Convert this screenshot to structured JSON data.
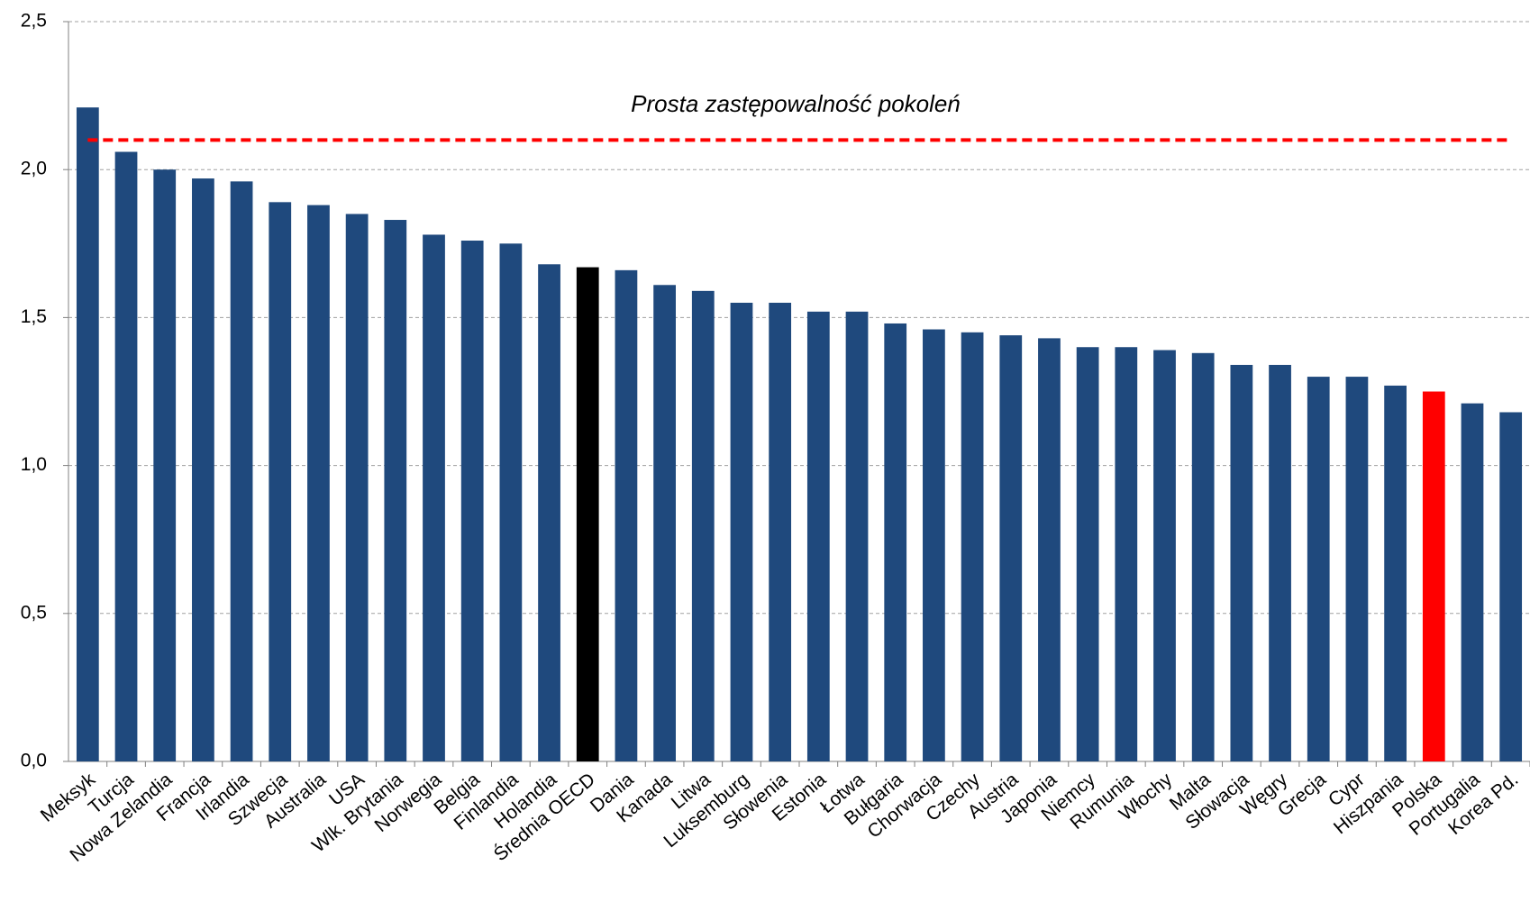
{
  "chart_data": {
    "type": "bar",
    "categories": [
      "Meksyk",
      "Turcja",
      "Nowa Zelandia",
      "Francja",
      "Irlandia",
      "Szwecja",
      "Australia",
      "USA",
      "Wlk. Brytania",
      "Norwegia",
      "Belgia",
      "Finlandia",
      "Holandia",
      "Średnia OECD",
      "Dania",
      "Kanada",
      "Litwa",
      "Luksemburg",
      "Słowenia",
      "Estonia",
      "Łotwa",
      "Bułgaria",
      "Chorwacja",
      "Czechy",
      "Austria",
      "Japonia",
      "Niemcy",
      "Rumunia",
      "Włochy",
      "Malta",
      "Słowacja",
      "Węgry",
      "Grecja",
      "Cypr",
      "Hiszpania",
      "Polska",
      "Portugalia",
      "Korea Pd."
    ],
    "values": [
      2.21,
      2.06,
      2.0,
      1.97,
      1.96,
      1.89,
      1.88,
      1.85,
      1.83,
      1.78,
      1.76,
      1.75,
      1.68,
      1.67,
      1.66,
      1.61,
      1.59,
      1.55,
      1.55,
      1.52,
      1.52,
      1.48,
      1.46,
      1.45,
      1.44,
      1.43,
      1.4,
      1.4,
      1.39,
      1.38,
      1.34,
      1.34,
      1.3,
      1.3,
      1.27,
      1.25,
      1.21,
      1.18
    ],
    "colors": [
      "#1f497d",
      "#1f497d",
      "#1f497d",
      "#1f497d",
      "#1f497d",
      "#1f497d",
      "#1f497d",
      "#1f497d",
      "#1f497d",
      "#1f497d",
      "#1f497d",
      "#1f497d",
      "#1f497d",
      "#000000",
      "#1f497d",
      "#1f497d",
      "#1f497d",
      "#1f497d",
      "#1f497d",
      "#1f497d",
      "#1f497d",
      "#1f497d",
      "#1f497d",
      "#1f497d",
      "#1f497d",
      "#1f497d",
      "#1f497d",
      "#1f497d",
      "#1f497d",
      "#1f497d",
      "#1f497d",
      "#1f497d",
      "#1f497d",
      "#1f497d",
      "#1f497d",
      "#ff0000",
      "#1f497d",
      "#1f497d"
    ],
    "ylim": [
      0,
      2.5
    ],
    "yticks": [
      {
        "value": 0,
        "label": "0,0"
      },
      {
        "value": 0.5,
        "label": "0,5"
      },
      {
        "value": 1,
        "label": "1,0"
      },
      {
        "value": 1.5,
        "label": "1,5"
      },
      {
        "value": 2,
        "label": "2,0"
      },
      {
        "value": 2.5,
        "label": "2,5"
      }
    ],
    "grid": true,
    "reference_line": {
      "value": 2.1,
      "label": "Prosta zastępowalność pokoleń",
      "color": "#ff0000"
    }
  }
}
